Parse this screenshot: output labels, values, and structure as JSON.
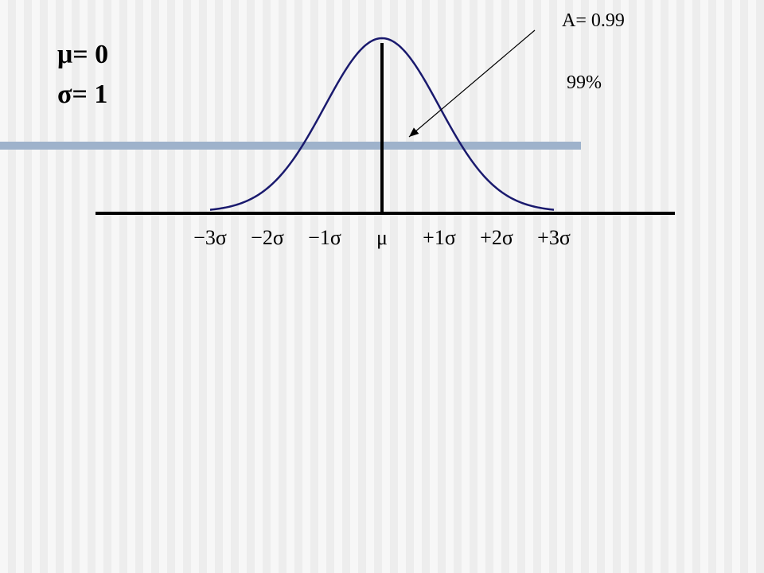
{
  "params": {
    "mu_text": "μ= 0",
    "sigma_text": "σ= 1"
  },
  "annotation": {
    "area_text": "A= 0.99",
    "percent_text": "99%"
  },
  "colors": {
    "curve": "#1a1a6e",
    "axis": "#000000",
    "band": "#9eb2cb",
    "arrow": "#000000"
  },
  "chart_data": {
    "type": "line",
    "title": "",
    "xlabel": "",
    "ylabel": "",
    "mean": 0,
    "std": 1,
    "xlim": [
      -3.6,
      3.6
    ],
    "series": [
      {
        "function": "normal_pdf",
        "mean": 0,
        "std": 1,
        "x_range": [
          -3,
          3
        ]
      }
    ],
    "tick_labels": [
      {
        "x": -3,
        "label": "−3σ"
      },
      {
        "x": -2,
        "label": "−2σ"
      },
      {
        "x": -1,
        "label": "−1σ"
      },
      {
        "x": 0,
        "label": "μ"
      },
      {
        "x": 1,
        "label": "+1σ"
      },
      {
        "x": 2,
        "label": "+2σ"
      },
      {
        "x": 3,
        "label": "+3σ"
      }
    ],
    "area": 0.99,
    "area_percent": "99%",
    "grid": false,
    "legend": "none"
  }
}
